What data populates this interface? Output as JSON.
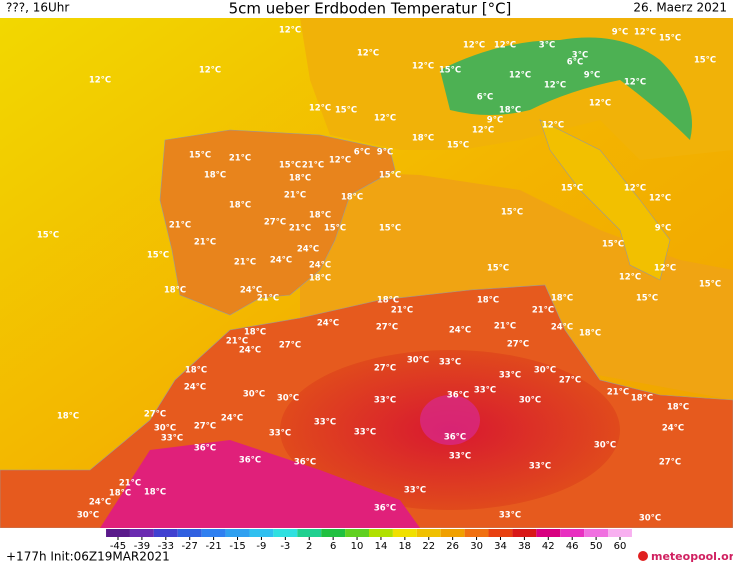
{
  "header": {
    "left": "???, 16Uhr",
    "title": "5cm ueber Erdboden Temperatur [°C]",
    "right": "26. Maerz 2021"
  },
  "footer": {
    "run": "+177h Init:06Z19MAR2021",
    "brand": "meteopool.org"
  },
  "legend": {
    "ticks": [
      -45,
      -39,
      -33,
      -27,
      -21,
      -15,
      -9,
      -3,
      2,
      6,
      10,
      14,
      18,
      22,
      26,
      30,
      34,
      38,
      42,
      46,
      50,
      60
    ],
    "colors": [
      "#5a1a8a",
      "#6a2ab0",
      "#4040d0",
      "#3060e0",
      "#3080f0",
      "#30a0f0",
      "#30c0f0",
      "#30e0e0",
      "#20d090",
      "#20c040",
      "#60d020",
      "#b0e000",
      "#f0e000",
      "#f0c000",
      "#f0a000",
      "#f07010",
      "#e84010",
      "#d81818",
      "#d80080",
      "#e830c0",
      "#f070e0",
      "#f8b0f0"
    ]
  },
  "labels": [
    "12°C",
    "12°C",
    "12°C",
    "12°C",
    "12°C",
    "15°C",
    "12°C",
    "12°C",
    "15°C",
    "12°C",
    "12°C",
    "3°C",
    "3°C",
    "9°C",
    "12°C",
    "15°C",
    "15°C",
    "6°C",
    "9°C",
    "12°C",
    "12°C",
    "6°C",
    "18°C",
    "12°C",
    "9°C",
    "12°C",
    "12°C",
    "15°C",
    "18°C",
    "12°C",
    "15°C",
    "21°C",
    "18°C",
    "15°C",
    "21°C",
    "18°C",
    "12°C",
    "6°C",
    "9°C",
    "21°C",
    "15°C",
    "18°C",
    "18°C",
    "27°C",
    "21°C",
    "18°C",
    "15°C",
    "21°C",
    "21°C",
    "24°C",
    "21°C",
    "24°C",
    "24°C",
    "18°C",
    "18°C",
    "24°C",
    "21°C",
    "15°C",
    "15°C",
    "15°C",
    "15°C",
    "15°C",
    "12°C",
    "12°C",
    "9°C",
    "15°C",
    "12°C",
    "12°C",
    "15°C",
    "15°C",
    "15°C",
    "18°C",
    "21°C",
    "18°C",
    "18°C",
    "21°C",
    "27°C",
    "24°C",
    "21°C",
    "24°C",
    "18°C",
    "24°C",
    "18°C",
    "21°C",
    "24°C",
    "27°C",
    "27°C",
    "30°C",
    "33°C",
    "27°C",
    "33°C",
    "30°C",
    "27°C",
    "18°C",
    "24°C",
    "30°C",
    "30°C",
    "33°C",
    "36°C",
    "33°C",
    "30°C",
    "21°C",
    "18°C",
    "18°C",
    "27°C",
    "30°C",
    "24°C",
    "27°C",
    "33°C",
    "33°C",
    "33°C",
    "33°C",
    "36°C",
    "18°C",
    "24°C",
    "30°C",
    "36°C",
    "33°C",
    "27°C",
    "36°C",
    "36°C",
    "33°C",
    "21°C",
    "18°C",
    "18°C",
    "33°C",
    "24°C",
    "30°C",
    "36°C",
    "33°C",
    "30°C"
  ]
}
